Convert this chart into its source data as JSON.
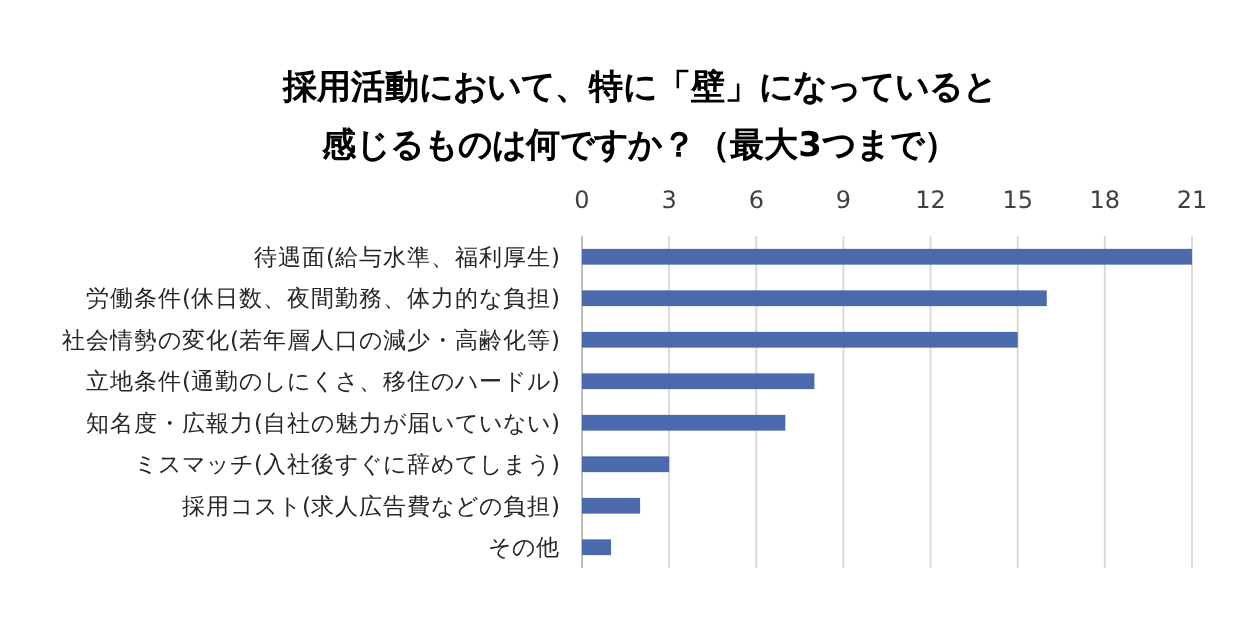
{
  "chart_data": {
    "type": "bar",
    "orientation": "horizontal",
    "title": "採用活動において、特に「壁」になっていると感じるものは何ですか？（最大3つまで）",
    "categories": [
      "待遇面(給与水準、福利厚生)",
      "労働条件(休日数、夜間勤務、体力的な負担)",
      "社会情勢の変化(若年層人口の減少・高齢化等)",
      "立地条件(通勤のしにくさ、移住のハードル)",
      "知名度・広報力(自社の魅力が届いていない)",
      "ミスマッチ(入社後すぐに辞めてしまう)",
      "採用コスト(求人広告費などの負担)",
      "その他"
    ],
    "values": [
      21,
      16,
      15,
      8,
      7,
      3,
      2,
      1
    ],
    "color": "#4a6aab",
    "xlim": [
      0,
      21
    ],
    "xticks": [
      0,
      3,
      6,
      9,
      12,
      15,
      18,
      21
    ],
    "grid": "x"
  }
}
